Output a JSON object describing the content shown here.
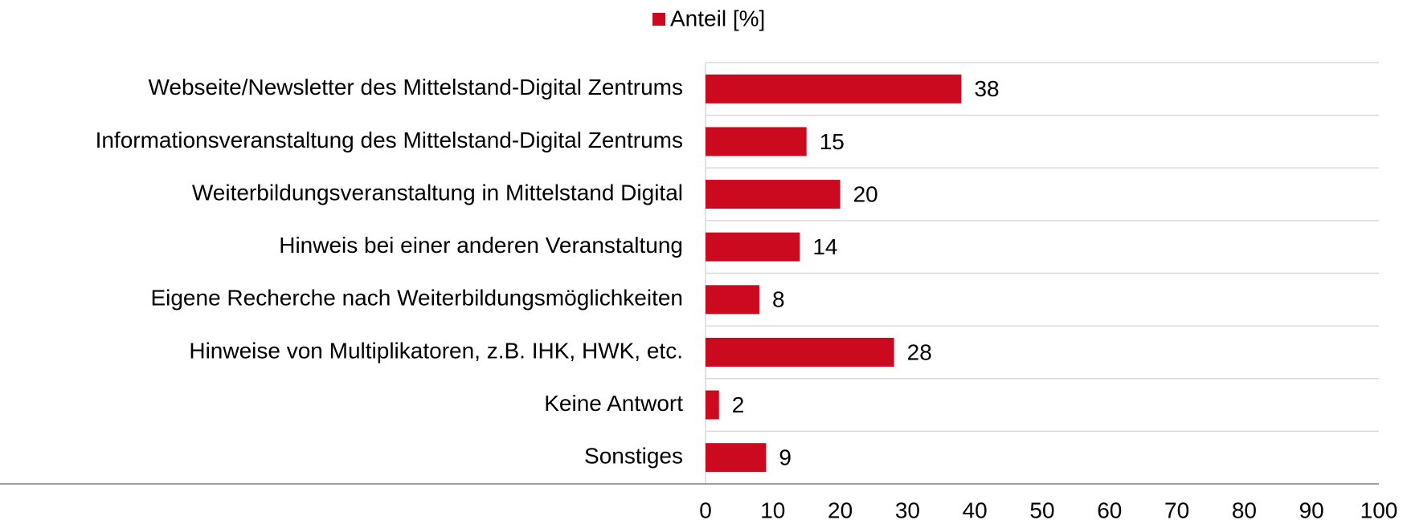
{
  "chart_data": {
    "type": "bar",
    "orientation": "horizontal",
    "categories": [
      "Webseite/Newsletter des Mittelstand-Digital Zentrums",
      "Informationsveranstaltung des Mittelstand-Digital Zentrums",
      "Weiterbildungsveranstaltung in Mittelstand Digital",
      "Hinweis bei einer anderen Veranstaltung",
      "Eigene Recherche nach Weiterbildungsmöglichkeiten",
      "Hinweise von Multiplikatoren, z.B. IHK, HWK, etc.",
      "Keine Antwort",
      "Sonstiges"
    ],
    "series": [
      {
        "name": "Anteil [%]",
        "color": "#cc0a1f",
        "values": [
          38,
          15,
          20,
          14,
          8,
          28,
          2,
          9
        ]
      }
    ],
    "xlim": [
      0,
      100
    ],
    "xticks": [
      0,
      10,
      20,
      30,
      40,
      50,
      60,
      70,
      80,
      90,
      100
    ],
    "legend": "top"
  }
}
